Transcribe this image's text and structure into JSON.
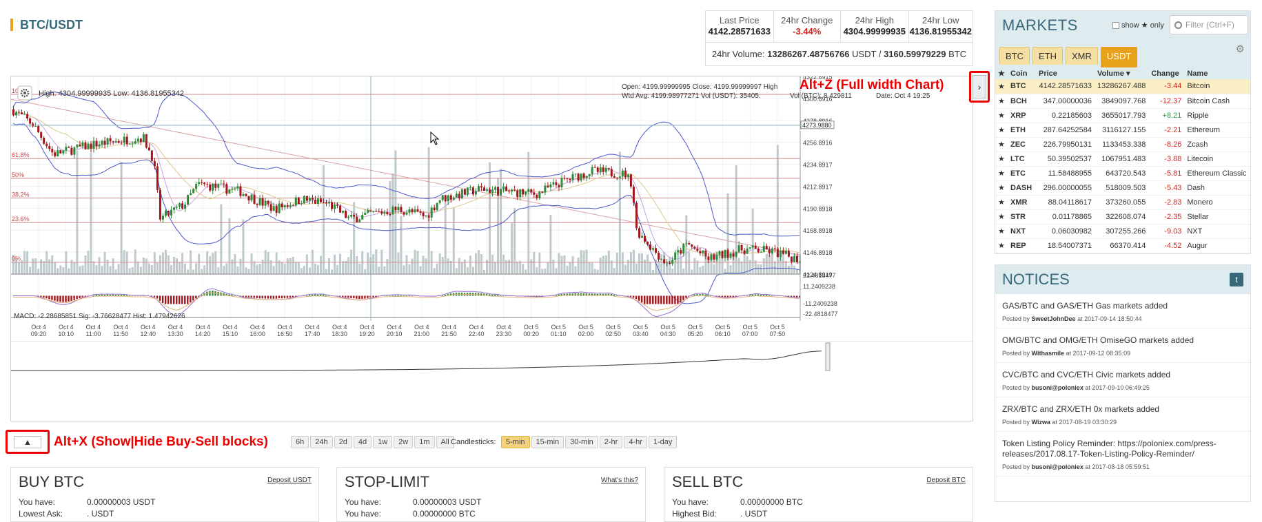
{
  "header": {
    "pair": "BTC/USDT"
  },
  "stats": {
    "last_price_label": "Last Price",
    "last_price": "4142.28571633",
    "change_label": "24hr Change",
    "change": "-3.44%",
    "high_label": "24hr High",
    "high": "4304.99999935",
    "low_label": "24hr Low",
    "low": "4136.81955342",
    "volume_label": "24hr Volume:",
    "volume_usdt": "13286267.48756766",
    "usdt": "USDT /",
    "volume_btc": "3160.59979229",
    "btc": "BTC"
  },
  "chart": {
    "hl_text": "High: 4304.99999935   Low: 4136.81955342",
    "ohlc_line1": "Open:      4199.99999995  Close:       4199.99999997  High",
    "ohlc_line2": "Wtd Avg: 4199.98977271  Vol (USDT): 35405.",
    "ohlc_line3": "Vol (BTC): 8.429811",
    "ohlc_date": "Date: Oct 4 19:25",
    "macd_text": "MACD:  -2.28685851     Sig:  -3.76628477     Hist:  1.47942626",
    "fib_labels": [
      "100%",
      "61.8%",
      "50%",
      "38.2%",
      "23.6%",
      "0%"
    ],
    "price_ticks": [
      "4322.8915",
      "4300.8916",
      "4278.8916",
      "4273.9880",
      "4256.8916",
      "4234.8917",
      "4212.8917",
      "4190.8918",
      "4168.8918",
      "4146.8918",
      "4124.8919"
    ],
    "macd_ticks": [
      "22.4818477",
      "11.2409238",
      "-11.2409238",
      "-22.4818477"
    ],
    "x_ticks": [
      [
        "Oct 4",
        "09:20"
      ],
      [
        "Oct 4",
        "10:10"
      ],
      [
        "Oct 4",
        "11:00"
      ],
      [
        "Oct 4",
        "11:50"
      ],
      [
        "Oct 4",
        "12:40"
      ],
      [
        "Oct 4",
        "13:30"
      ],
      [
        "Oct 4",
        "14:20"
      ],
      [
        "Oct 4",
        "15:10"
      ],
      [
        "Oct 4",
        "16:00"
      ],
      [
        "Oct 4",
        "16:50"
      ],
      [
        "Oct 4",
        "17:40"
      ],
      [
        "Oct 4",
        "18:30"
      ],
      [
        "Oct 4",
        "19:20"
      ],
      [
        "Oct 4",
        "20:10"
      ],
      [
        "Oct 4",
        "21:00"
      ],
      [
        "Oct 4",
        "21:50"
      ],
      [
        "Oct 4",
        "22:40"
      ],
      [
        "Oct 4",
        "23:30"
      ],
      [
        "Oct 5",
        "00:20"
      ],
      [
        "Oct 5",
        "01:10"
      ],
      [
        "Oct 5",
        "02:00"
      ],
      [
        "Oct 5",
        "02:50"
      ],
      [
        "Oct 5",
        "03:40"
      ],
      [
        "Oct 5",
        "04:30"
      ],
      [
        "Oct 5",
        "05:20"
      ],
      [
        "Oct 5",
        "06:10"
      ],
      [
        "Oct 5",
        "07:00"
      ],
      [
        "Oct 5",
        "07:50"
      ]
    ]
  },
  "annotations": {
    "full_width": "Alt+Z (Full width Chart)",
    "show_hide": "Alt+X (Show|Hide Buy-Sell blocks)"
  },
  "ranges": [
    "6h",
    "24h",
    "2d",
    "4d",
    "1w",
    "2w",
    "1m",
    "All"
  ],
  "candlesticks_label": "Candlesticks:",
  "candle_periods": [
    "5-min",
    "15-min",
    "30-min",
    "2-hr",
    "4-hr",
    "1-day"
  ],
  "buy": {
    "title": "BUY BTC",
    "deposit": "Deposit USDT",
    "you_have_label": "You have:",
    "you_have": "0.00000003 USDT",
    "lowest_ask_label": "Lowest Ask:",
    "lowest_ask": ". USDT"
  },
  "stop": {
    "title": "STOP-LIMIT",
    "whats_this": "What's this?",
    "you_have_label": "You have:",
    "you_have": "0.00000003 USDT",
    "you_have2_label": "You have:",
    "you_have2": "0.00000000 BTC"
  },
  "sell": {
    "title": "SELL BTC",
    "deposit": "Deposit BTC",
    "you_have_label": "You have:",
    "you_have": "0.00000000 BTC",
    "highest_bid_label": "Highest Bid:",
    "highest_bid": ". USDT"
  },
  "markets": {
    "title": "MARKETS",
    "show_only": "show",
    "only": "only",
    "filter_placeholder": "Filter (Ctrl+F)",
    "tabs": [
      "BTC",
      "ETH",
      "XMR",
      "USDT"
    ],
    "columns": [
      "Coin",
      "Price",
      "Volume ▾",
      "Change",
      "Name"
    ],
    "rows": [
      {
        "coin": "BTC",
        "price": "4142.28571633",
        "volume": "13286267.488",
        "change": "-3.44",
        "name": "Bitcoin"
      },
      {
        "coin": "BCH",
        "price": "347.00000036",
        "volume": "3849097.768",
        "change": "-12.37",
        "name": "Bitcoin Cash"
      },
      {
        "coin": "XRP",
        "price": "0.22185603",
        "volume": "3655017.793",
        "change": "+8.21",
        "name": "Ripple"
      },
      {
        "coin": "ETH",
        "price": "287.64252584",
        "volume": "3116127.155",
        "change": "-2.21",
        "name": "Ethereum"
      },
      {
        "coin": "ZEC",
        "price": "226.79950131",
        "volume": "1133453.338",
        "change": "-8.26",
        "name": "Zcash"
      },
      {
        "coin": "LTC",
        "price": "50.39502537",
        "volume": "1067951.483",
        "change": "-3.88",
        "name": "Litecoin"
      },
      {
        "coin": "ETC",
        "price": "11.58488955",
        "volume": "643720.543",
        "change": "-5.81",
        "name": "Ethereum Classic"
      },
      {
        "coin": "DASH",
        "price": "296.00000055",
        "volume": "518009.503",
        "change": "-5.43",
        "name": "Dash"
      },
      {
        "coin": "XMR",
        "price": "88.04118617",
        "volume": "373260.055",
        "change": "-2.83",
        "name": "Monero"
      },
      {
        "coin": "STR",
        "price": "0.01178865",
        "volume": "322608.074",
        "change": "-2.35",
        "name": "Stellar"
      },
      {
        "coin": "NXT",
        "price": "0.06030982",
        "volume": "307255.266",
        "change": "-9.03",
        "name": "NXT"
      },
      {
        "coin": "REP",
        "price": "18.54007371",
        "volume": "66370.414",
        "change": "-4.52",
        "name": "Augur"
      }
    ]
  },
  "notices": {
    "title": "NOTICES",
    "items": [
      {
        "text": "GAS/BTC and GAS/ETH Gas markets added",
        "posted": "Posted by",
        "by": "SweetJohnDee",
        "at": "at 2017-09-14 18:50:44"
      },
      {
        "text": "OMG/BTC and OMG/ETH OmiseGO markets added",
        "posted": "Posted by",
        "by": "Withasmile",
        "at": "at 2017-09-12 08:35:09"
      },
      {
        "text": "CVC/BTC and CVC/ETH Civic markets added",
        "posted": "Posted by",
        "by": "busoni@poloniex",
        "at": "at 2017-09-10 06:49:25"
      },
      {
        "text": "ZRX/BTC and ZRX/ETH 0x markets added",
        "posted": "Posted by",
        "by": "Wizwa",
        "at": "at 2017-08-19 03:30:29"
      },
      {
        "text": "Token Listing Policy Reminder: https://poloniex.com/press-releases/2017.08.17-Token-Listing-Policy-Reminder/",
        "posted": "Posted by",
        "by": "busoni@poloniex",
        "at": "at 2017-08-18 05:59:51"
      }
    ]
  }
}
